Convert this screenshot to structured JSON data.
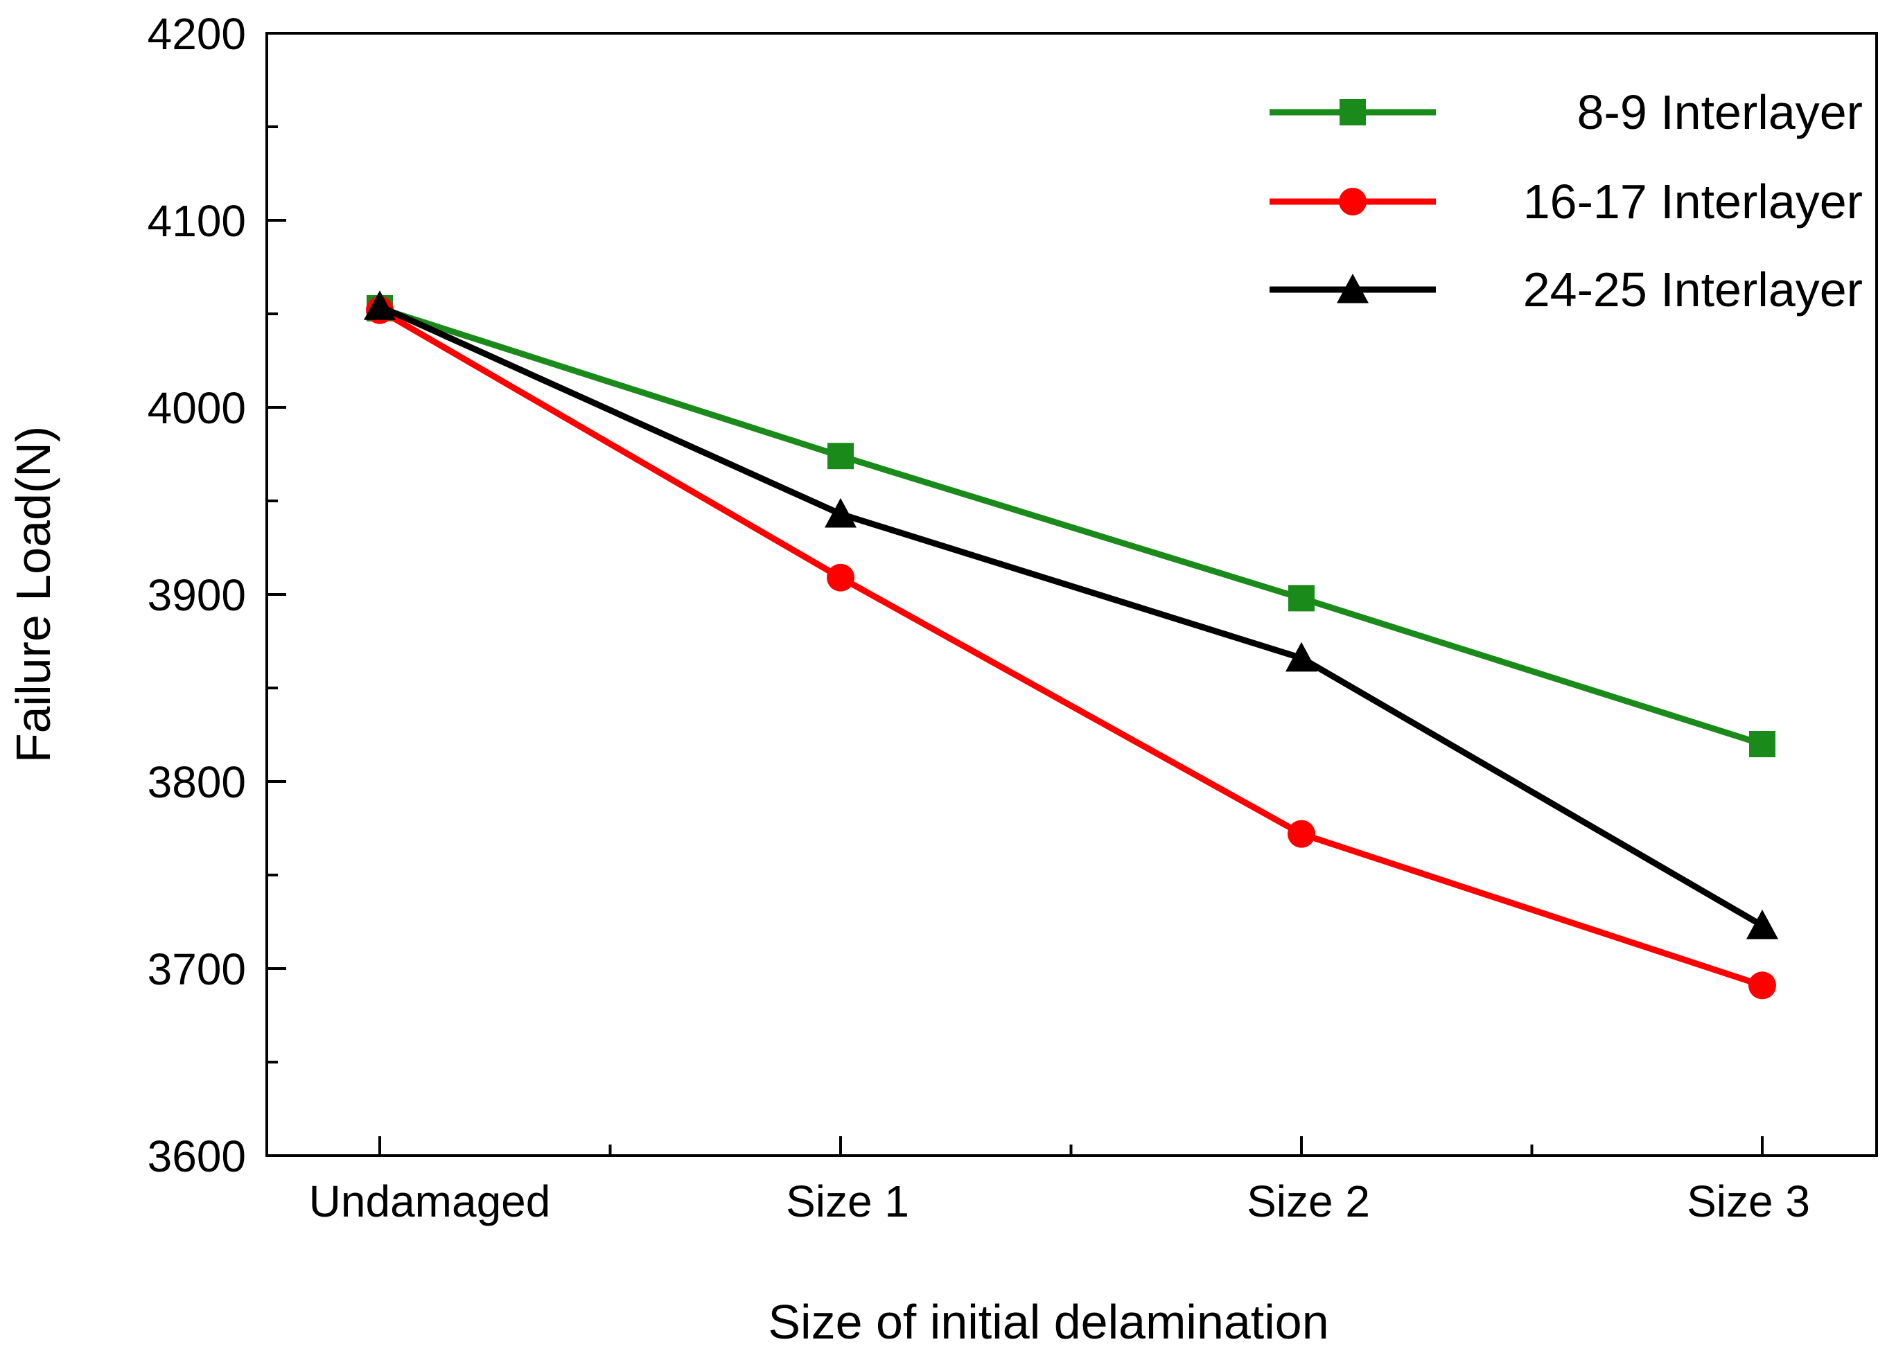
{
  "chart_data": {
    "type": "line",
    "title": "",
    "xlabel": "Size of initial delamination",
    "ylabel": "Failure Load(N)",
    "categories": [
      "Undamaged",
      "Size 1",
      "Size 2",
      "Size 3"
    ],
    "ylim": [
      3600,
      4200
    ],
    "yticks": [
      3600,
      3700,
      3800,
      3900,
      4000,
      4100,
      4200
    ],
    "grid": false,
    "legend_position": "top-right",
    "series": [
      {
        "name": "8-9 Interlayer",
        "color": "#1a8a1a",
        "marker": "square",
        "values": [
          4053,
          3974,
          3898,
          3820
        ]
      },
      {
        "name": "16-17 Interlayer",
        "color": "#ff0000",
        "marker": "circle",
        "values": [
          4052,
          3909,
          3772,
          3691
        ]
      },
      {
        "name": "24-25 Interlayer",
        "color": "#000000",
        "marker": "triangle",
        "values": [
          4054,
          3943,
          3866,
          3723
        ]
      }
    ]
  }
}
